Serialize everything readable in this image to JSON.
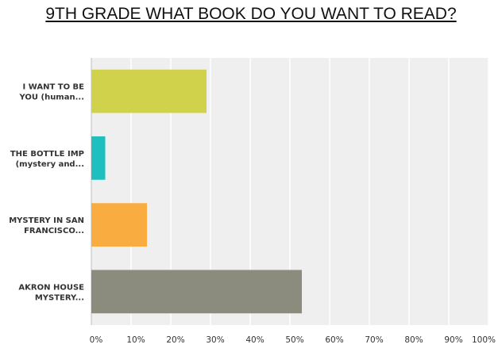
{
  "chart_data": {
    "type": "bar",
    "orientation": "horizontal",
    "title": "9TH GRADE WHAT BOOK DO YOU WANT TO READ?",
    "categories": [
      [
        "I WANT TO BE",
        "YOU (human..."
      ],
      [
        "THE BOTTLE IMP",
        "(mystery and..."
      ],
      [
        "MYSTERY IN SAN",
        "FRANCISCO..."
      ],
      [
        "AKRON HOUSE",
        "MYSTERY..."
      ]
    ],
    "values": [
      29,
      3.5,
      14,
      53
    ],
    "colors": [
      "#d1d24c",
      "#1fbfbf",
      "#f9ad40",
      "#8c8c7e"
    ],
    "xlim": [
      0,
      100
    ],
    "x_ticks": [
      0,
      10,
      20,
      30,
      40,
      50,
      60,
      70,
      80,
      90,
      100
    ],
    "x_tick_labels": [
      "0%",
      "10%",
      "20%",
      "30%",
      "40%",
      "50%",
      "60%",
      "70%",
      "80%",
      "90%",
      "100%"
    ],
    "grid": true,
    "plot_background": "#efefef",
    "grid_color": "#ffffff"
  }
}
